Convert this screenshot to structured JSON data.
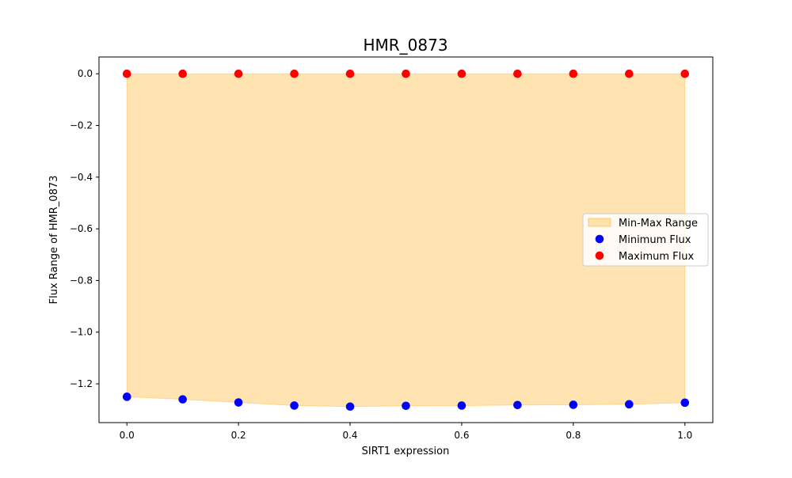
{
  "chart_data": {
    "type": "scatter",
    "title": "HMR_0873",
    "xlabel": "SIRT1 expression",
    "ylabel": "Flux Range of HMR_0873",
    "xlim": [
      -0.05,
      1.05
    ],
    "ylim": [
      -1.35,
      0.065
    ],
    "x_ticks": [
      0.0,
      0.2,
      0.4,
      0.6,
      0.8,
      1.0
    ],
    "x_tick_labels": [
      "0.0",
      "0.2",
      "0.4",
      "0.6",
      "0.8",
      "1.0"
    ],
    "y_ticks": [
      0.0,
      -0.2,
      -0.4,
      -0.6,
      -0.8,
      -1.0,
      -1.2
    ],
    "y_tick_labels": [
      "0.0",
      "−0.2",
      "−0.4",
      "−0.6",
      "−0.8",
      "−1.0",
      "−1.2"
    ],
    "grid": false,
    "legend_position": "center-right",
    "x": [
      0.0,
      0.1,
      0.2,
      0.3,
      0.4,
      0.5,
      0.6,
      0.7,
      0.8,
      0.9,
      1.0
    ],
    "fill": {
      "name": "Min-Max Range",
      "color": "#FFA500",
      "opacity": 0.3
    },
    "series": [
      {
        "name": "Minimum Flux",
        "color": "#0000FF",
        "values": [
          -1.25,
          -1.26,
          -1.272,
          -1.284,
          -1.288,
          -1.285,
          -1.284,
          -1.282,
          -1.281,
          -1.279,
          -1.273
        ]
      },
      {
        "name": "Maximum Flux",
        "color": "#FF0000",
        "values": [
          0.0,
          0.0,
          0.0,
          0.0,
          0.0,
          0.0,
          0.0,
          0.0,
          0.0,
          0.0,
          0.0
        ]
      }
    ]
  }
}
